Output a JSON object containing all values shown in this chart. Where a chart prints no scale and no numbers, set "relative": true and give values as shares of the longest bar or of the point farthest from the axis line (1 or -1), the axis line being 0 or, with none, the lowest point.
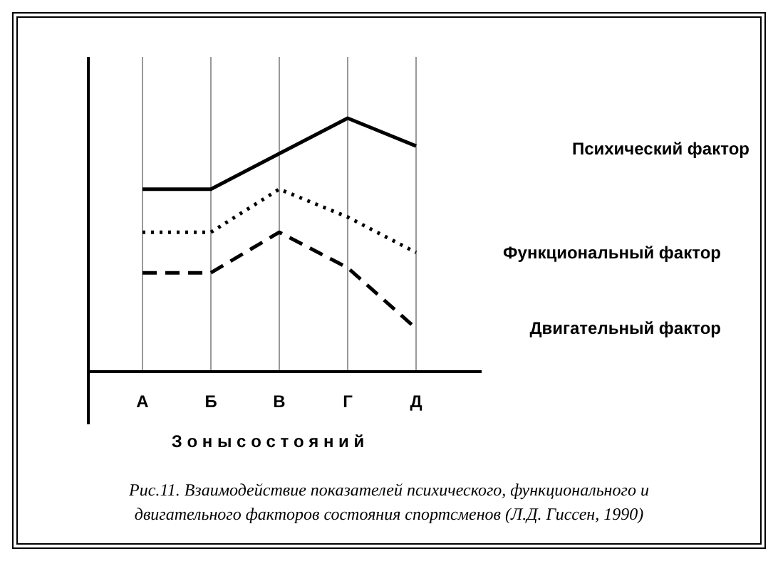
{
  "chart_data": {
    "type": "line",
    "relative": true,
    "xlabel": "З о н ы   с о с т о я н и й",
    "categories": [
      "А",
      "Б",
      "В",
      "Г",
      "Д"
    ],
    "grid": "x",
    "legend": false,
    "series": [
      {
        "name": "Психический фактор",
        "color": "#000000",
        "line_style": "solid",
        "values": [
          0.72,
          0.72,
          0.86,
          1,
          0.89
        ]
      },
      {
        "name": "Функциональный фактор",
        "color": "#000000",
        "line_style": "dotted",
        "values": [
          0.55,
          0.55,
          0.72,
          0.61,
          0.47
        ]
      },
      {
        "name": "Двигательный фактор",
        "color": "#000000",
        "line_style": "dashed",
        "values": [
          0.39,
          0.39,
          0.55,
          0.41,
          0.17
        ]
      }
    ],
    "annotations": [
      "Рис.11.  Взаимодействие показателей психического, функционального и",
      "двигательного факторов состояния спортсменов (Л.Д. Гиссен,  1990)"
    ]
  }
}
